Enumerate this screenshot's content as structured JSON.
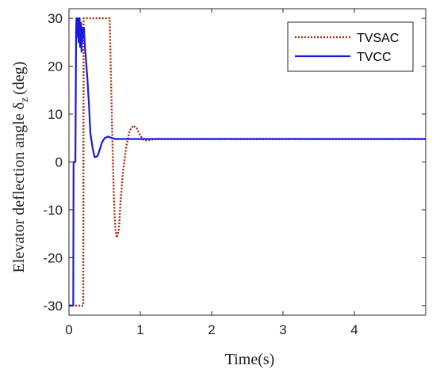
{
  "chart_data": {
    "type": "line",
    "xlabel": "Time(s)",
    "ylabel_main": "Elevator deflection angle δ",
    "ylabel_subscript": "z",
    "ylabel_tail": "(deg)",
    "xlim": [
      0,
      5
    ],
    "ylim": [
      -32,
      32
    ],
    "xticks": [
      0,
      1,
      2,
      3,
      4
    ],
    "yticks": [
      -30,
      -20,
      -10,
      0,
      10,
      20,
      30
    ],
    "grid": false,
    "legend_position": "top-right",
    "series": [
      {
        "name": "TVSAC",
        "color": "#a52a0a",
        "style": "dotted",
        "x": [
          0,
          0.02,
          0.05,
          0.08,
          0.1,
          0.12,
          0.15,
          0.18,
          0.2,
          0.205,
          0.22,
          0.25,
          0.3,
          0.4,
          0.5,
          0.55,
          0.57,
          0.6,
          0.63,
          0.65,
          0.67,
          0.7,
          0.72,
          0.75,
          0.8,
          0.85,
          0.9,
          0.95,
          1.0,
          1.05,
          1.1,
          1.2,
          1.3,
          1.5,
          2,
          3,
          4,
          5
        ],
        "y": [
          -30,
          -30,
          -30,
          -30,
          -30,
          -30,
          -30,
          -30,
          -30,
          30,
          30,
          30,
          30,
          30,
          30,
          30,
          30,
          10,
          -8,
          -14,
          -15.8,
          -14,
          -9,
          -3,
          3,
          6.5,
          7.6,
          7,
          5.5,
          4.5,
          4.5,
          4.8,
          4.8,
          4.8,
          4.8,
          4.8,
          4.8,
          4.8
        ]
      },
      {
        "name": "TVCC",
        "color": "#1a1adc",
        "style": "solid",
        "x": [
          0,
          0.04,
          0.06,
          0.065,
          0.08,
          0.09,
          0.1,
          0.105,
          0.11,
          0.12,
          0.125,
          0.13,
          0.135,
          0.14,
          0.145,
          0.15,
          0.155,
          0.16,
          0.165,
          0.17,
          0.175,
          0.18,
          0.185,
          0.19,
          0.195,
          0.2,
          0.21,
          0.22,
          0.24,
          0.26,
          0.28,
          0.3,
          0.33,
          0.36,
          0.4,
          0.43,
          0.46,
          0.5,
          0.55,
          0.6,
          0.65,
          0.7,
          0.8,
          1.0,
          1.5,
          2,
          3,
          4,
          5
        ],
        "y": [
          -30,
          -30,
          -30,
          0,
          0,
          0,
          28,
          30,
          27,
          30,
          26,
          30,
          25,
          30,
          28,
          30,
          24,
          29,
          26,
          29,
          23,
          28,
          25,
          28,
          26,
          27,
          28,
          25,
          21,
          17,
          12,
          6,
          3,
          1,
          1.2,
          2.5,
          4,
          5,
          5.3,
          5,
          4.8,
          4.8,
          4.8,
          4.8,
          4.8,
          4.8,
          4.8,
          4.8,
          4.8
        ]
      }
    ]
  }
}
